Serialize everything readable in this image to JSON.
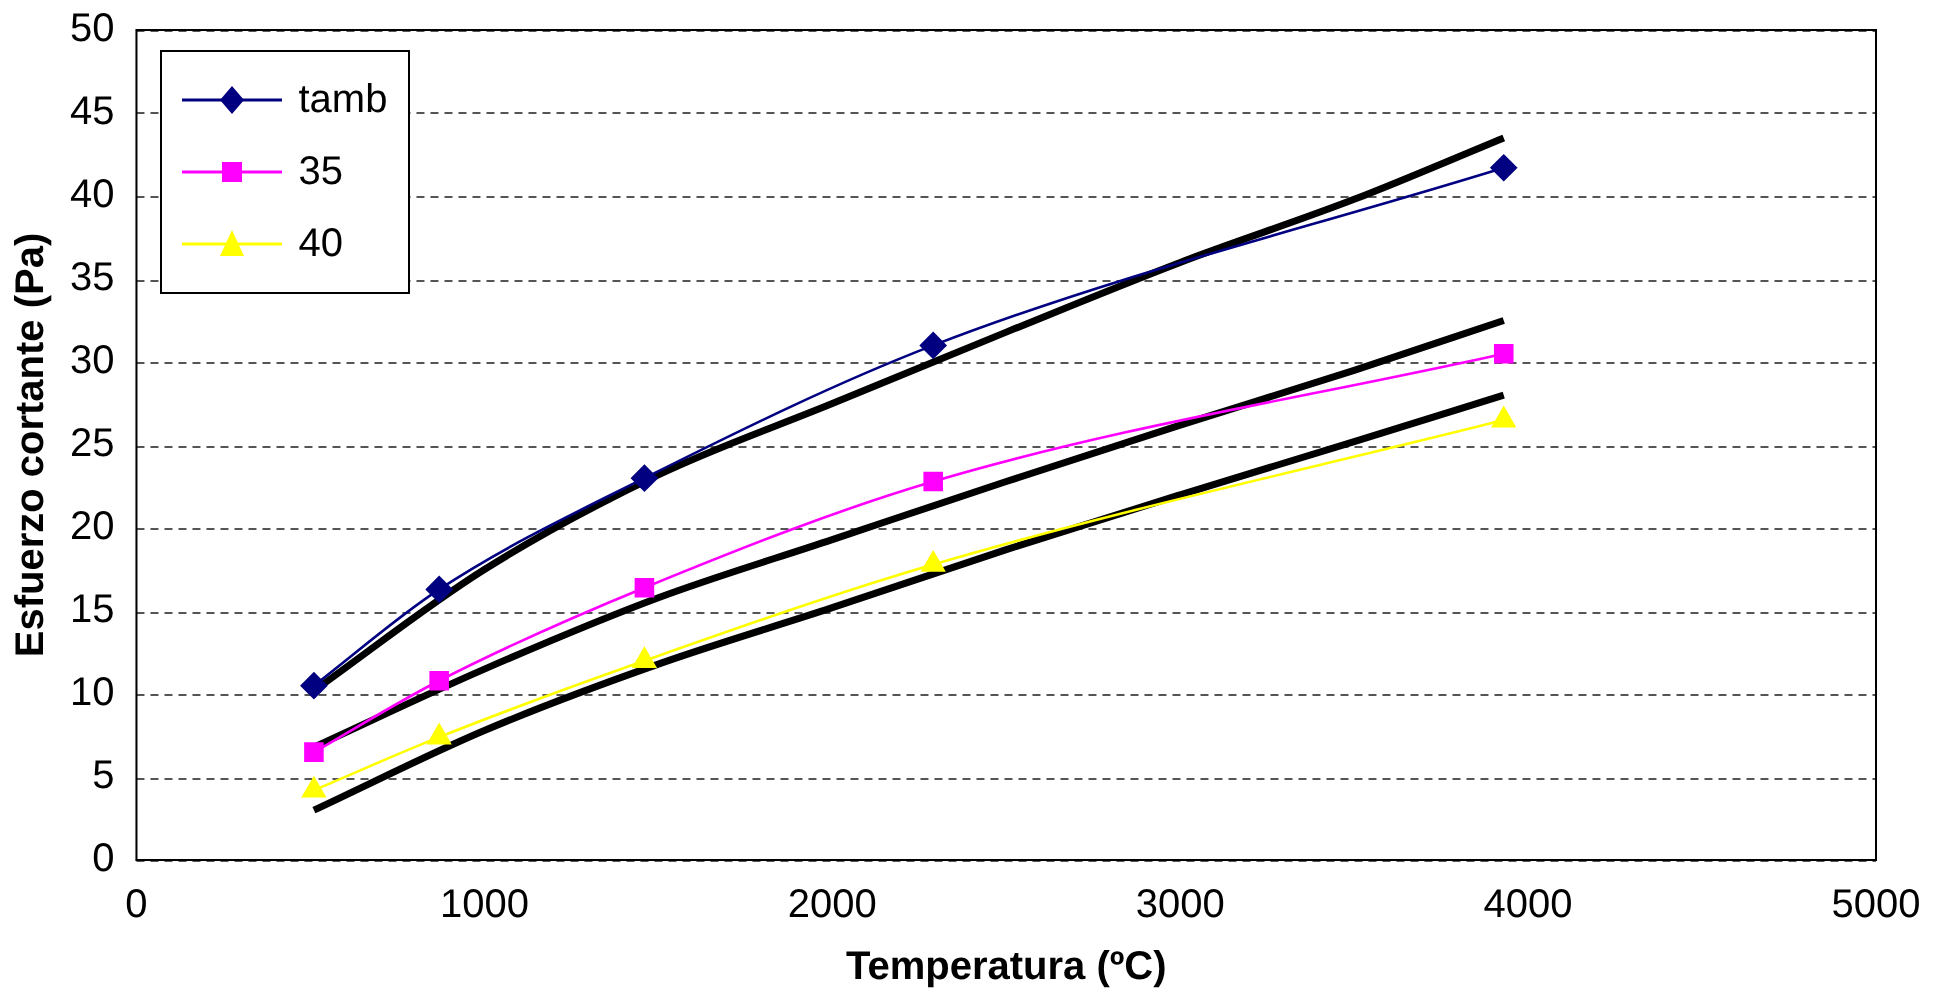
{
  "chart_data": {
    "type": "line",
    "xlabel": "Temperatura (ºC)",
    "ylabel": "Esfuerzo cortante (Pa)",
    "xlim": [
      0,
      5000
    ],
    "xticks": [
      0,
      1000,
      2000,
      3000,
      4000,
      5000
    ],
    "ylim": [
      0,
      50
    ],
    "yticks": [
      0,
      5,
      10,
      15,
      20,
      25,
      30,
      35,
      40,
      45,
      50
    ],
    "grid": "y",
    "legend": "top left",
    "series": [
      {
        "name": "tamb",
        "color": "#000080",
        "marker": "diamond",
        "x": [
          510,
          870,
          1460,
          2290,
          3930
        ],
        "values": [
          10.5,
          16.3,
          23,
          31,
          41.7
        ]
      },
      {
        "name": "35",
        "color": "#ff00ff",
        "marker": "square",
        "x": [
          510,
          870,
          1460,
          2290,
          3930
        ],
        "values": [
          6.5,
          10.8,
          16.4,
          22.8,
          30.5
        ]
      },
      {
        "name": "40",
        "color": "#ffff00",
        "marker": "triangle",
        "x": [
          510,
          870,
          1460,
          2290,
          3930
        ],
        "values": [
          4.2,
          7.4,
          12,
          17.8,
          26.5
        ]
      },
      {
        "color": "#000000",
        "marker": "none",
        "x": [
          510,
          1000,
          1500,
          2000,
          2500,
          3000,
          3500,
          3930
        ],
        "values": [
          10.2,
          17.5,
          23.2,
          27.5,
          31.8,
          36,
          39.8,
          43.5
        ]
      },
      {
        "color": "#000000",
        "marker": "none",
        "x": [
          510,
          1000,
          1500,
          2000,
          2500,
          3000,
          3500,
          3930
        ],
        "values": [
          6.8,
          11.5,
          15.8,
          19.3,
          22.8,
          26.2,
          29.5,
          32.5
        ]
      },
      {
        "color": "#000000",
        "marker": "none",
        "x": [
          510,
          1000,
          1500,
          2000,
          2500,
          3000,
          3500,
          3930
        ],
        "values": [
          3,
          7.8,
          11.8,
          15.2,
          18.7,
          22,
          25.2,
          28
        ]
      }
    ]
  }
}
